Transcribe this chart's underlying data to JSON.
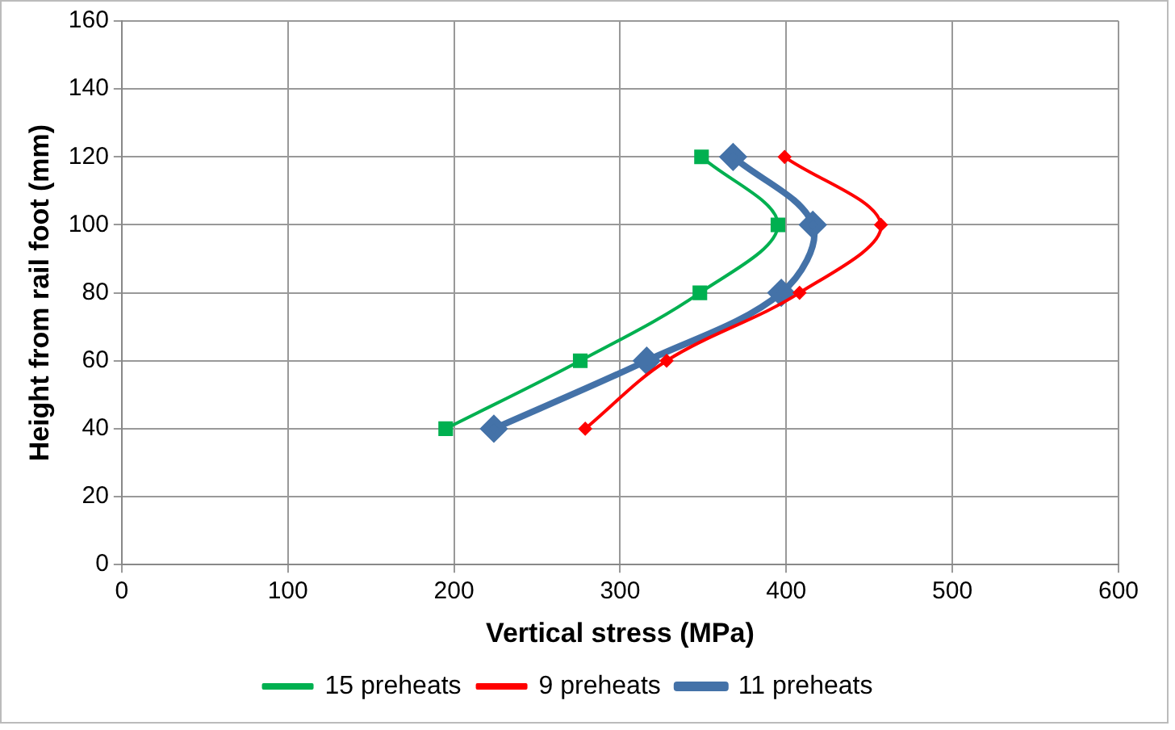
{
  "chart_data": {
    "type": "line",
    "xlabel": "Vertical stress (MPa)",
    "ylabel": "Height from rail foot (mm)",
    "xlim": [
      0,
      600
    ],
    "xticks": [
      0,
      100,
      200,
      300,
      400,
      500,
      600
    ],
    "ylim": [
      0,
      160
    ],
    "yticks": [
      0,
      20,
      40,
      60,
      80,
      100,
      120,
      140,
      160
    ],
    "grid": true,
    "legend": "bottom",
    "series": [
      {
        "name": "15 preheats",
        "color": "#00b050",
        "marker": "square",
        "x": [
          195,
          276,
          348,
          395,
          349
        ],
        "values": [
          40,
          60,
          80,
          100,
          120
        ]
      },
      {
        "name": "9 preheats",
        "color": "#ff0000",
        "marker": "diamond",
        "x": [
          279,
          328,
          408,
          457,
          399
        ],
        "values": [
          40,
          60,
          80,
          100,
          120
        ]
      },
      {
        "name": "11 preheats",
        "color": "#4472a8",
        "marker": "diamond",
        "x": [
          224,
          316,
          397,
          416,
          368
        ],
        "values": [
          40,
          60,
          80,
          100,
          120
        ]
      }
    ]
  }
}
